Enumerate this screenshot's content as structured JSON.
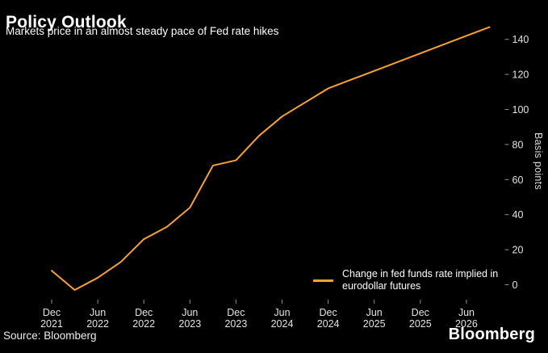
{
  "chart_data": {
    "type": "line",
    "title": "Policy Outlook",
    "subtitle": "Markets price in an almost steady pace of Fed rate hikes",
    "x": [
      "Dec 2021",
      "Mar 2022",
      "Jun 2022",
      "Sep 2022",
      "Dec 2022",
      "Mar 2023",
      "Jun 2023",
      "Sep 2023",
      "Dec 2023",
      "Mar 2024",
      "Jun 2024",
      "Sep 2024",
      "Dec 2024",
      "Mar 2025",
      "Jun 2025",
      "Sep 2025",
      "Dec 2025",
      "Mar 2026",
      "Jun 2026",
      "Sep 2026"
    ],
    "series": [
      {
        "name": "Change in fed funds rate implied in eurodollar futures",
        "color": "#f8a22c",
        "values": [
          8,
          -3,
          4,
          13,
          26,
          33,
          44,
          68,
          71,
          85,
          96,
          104,
          112,
          117,
          122,
          127,
          132,
          137,
          142,
          147
        ]
      }
    ],
    "x_tick_labels": [
      "Dec 2021",
      "Jun 2022",
      "Dec 2022",
      "Jun 2023",
      "Dec 2023",
      "Jun 2024",
      "Dec 2024",
      "Jun 2025",
      "Dec 2025",
      "Jun 2026"
    ],
    "y_ticks": [
      0,
      20,
      40,
      60,
      80,
      100,
      120,
      140
    ],
    "ylabel": "Basis points",
    "ylim": [
      -10,
      150
    ],
    "grid": false,
    "legend_position": "bottom-right"
  },
  "legend": {
    "lines": [
      "Change in fed funds rate implied in",
      "eurodollar futures"
    ]
  },
  "footer": {
    "source": "Source: Bloomberg",
    "brand": "Bloomberg"
  },
  "colors": {
    "background": "#000000",
    "line": "#f8a22c",
    "tick": "#8f8f8f",
    "tick_text": "#e3e3e3",
    "text": "#ffffff"
  }
}
